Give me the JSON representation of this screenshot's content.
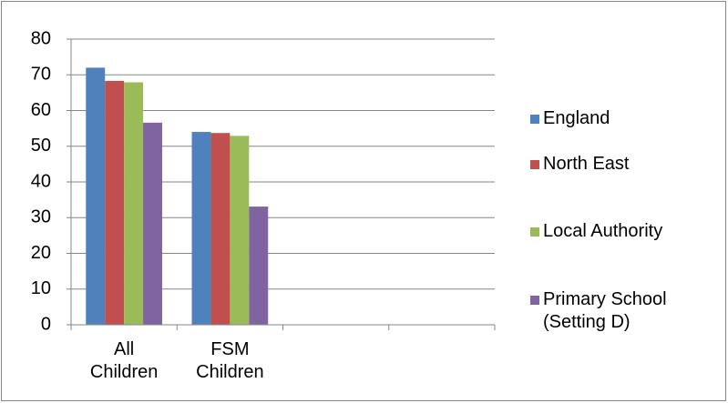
{
  "chart_data": {
    "type": "bar",
    "categories": [
      "All Children",
      "FSM Children",
      null,
      null
    ],
    "series": [
      {
        "name": "England",
        "color": "#4f81bd",
        "values": [
          72,
          54,
          null,
          null
        ]
      },
      {
        "name": "North East",
        "color": "#c0504d",
        "values": [
          68.3,
          53.7,
          null,
          null
        ]
      },
      {
        "name": "Local Authority",
        "color": "#9bbb59",
        "values": [
          67.9,
          52.9,
          null,
          null
        ]
      },
      {
        "name": "Primary School (Setting D)",
        "color": "#8064a2",
        "values": [
          56.6,
          33.1,
          null,
          null
        ]
      }
    ],
    "ylim": [
      0,
      80
    ],
    "yticks": [
      0,
      10,
      20,
      30,
      40,
      50,
      60,
      70,
      80
    ],
    "grid": true,
    "legend": "right"
  }
}
